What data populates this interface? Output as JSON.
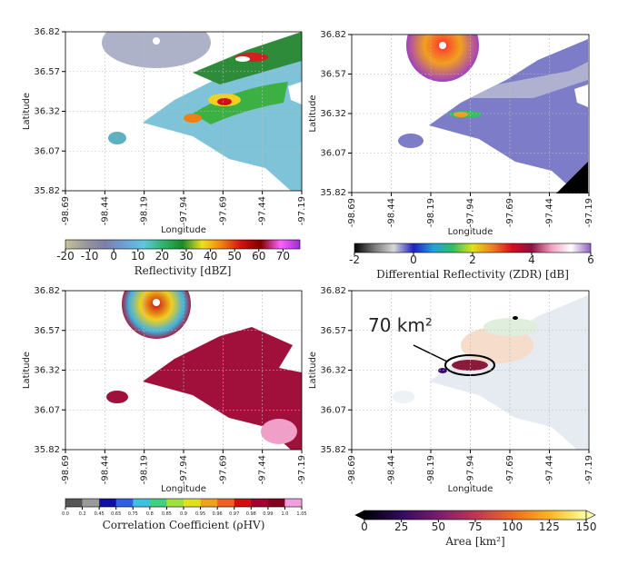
{
  "chart_data": [
    {
      "type": "heatmap",
      "xlabel": "Longitude",
      "ylabel": "Latitude",
      "xlim": [
        -98.69,
        -97.19
      ],
      "ylim": [
        35.82,
        36.82
      ],
      "xticks": [
        -98.69,
        -98.44,
        -98.19,
        -97.94,
        -97.69,
        -97.44,
        -97.19
      ],
      "yticks": [
        35.82,
        36.07,
        36.32,
        36.57,
        36.82
      ],
      "grid": true,
      "colorbar": {
        "label": "Reflectivity [dBZ]",
        "lim": [
          -20,
          77
        ],
        "ticks": [
          -20,
          -10,
          0,
          10,
          20,
          30,
          40,
          50,
          60,
          70
        ],
        "colors": [
          "#c8c39a",
          "#9a9a9a",
          "#7c7fa6",
          "#6f9fd6",
          "#5ec8e0",
          "#2fb36a",
          "#1a8a2a",
          "#f0e020",
          "#f08010",
          "#d01010",
          "#800000",
          "#ff60ff",
          "#9a30d0"
        ]
      }
    },
    {
      "type": "heatmap",
      "xlabel": "Longitude",
      "ylabel": "Latitude",
      "xlim": [
        -98.69,
        -97.19
      ],
      "ylim": [
        35.82,
        36.82
      ],
      "xticks": [
        -98.69,
        -98.44,
        -98.19,
        -97.94,
        -97.69,
        -97.44,
        -97.19
      ],
      "yticks": [
        35.82,
        36.07,
        36.32,
        36.57,
        36.82
      ],
      "grid": true,
      "colorbar": {
        "label": "Differential Reflectivity (ZDR) [dB]",
        "lim": [
          -2,
          6
        ],
        "ticks": [
          -2,
          0,
          2,
          4,
          6
        ],
        "colors": [
          "#000000",
          "#777777",
          "#d8d8d8",
          "#2020c0",
          "#20a0e0",
          "#30c060",
          "#e0e020",
          "#f08020",
          "#d01020",
          "#901040",
          "#f0a0c0",
          "#ffffff",
          "#9060c0"
        ]
      }
    },
    {
      "type": "heatmap",
      "xlabel": "Longitude",
      "ylabel": "Latitude",
      "xlim": [
        -98.69,
        -97.19
      ],
      "ylim": [
        35.82,
        36.82
      ],
      "xticks": [
        -98.69,
        -98.44,
        -98.19,
        -97.94,
        -97.69,
        -97.44,
        -97.19
      ],
      "yticks": [
        35.82,
        36.07,
        36.32,
        36.57,
        36.82
      ],
      "grid": true,
      "colorbar": {
        "label": "Correlation Coefficient (ρHV)",
        "ticks": [
          {
            "value": 0,
            "label": "0.0"
          },
          0.2,
          0.45,
          0.65,
          0.75,
          0.8,
          0.85,
          0.9,
          0.95,
          0.96,
          0.97,
          0.98,
          0.99,
          {
            "value": 1,
            "label": "1.0"
          },
          1.05
        ],
        "colors": [
          "#555555",
          "#9a9a9a",
          "#1010a0",
          "#3060e0",
          "#40c0e0",
          "#40d080",
          "#a0e040",
          "#e0e020",
          "#f0a020",
          "#f06020",
          "#d01010",
          "#a00030",
          "#800020",
          "#f0a0e0"
        ]
      }
    },
    {
      "type": "heatmap",
      "xlabel": "Longitude",
      "ylabel": "Latitude",
      "xlim": [
        -98.69,
        -97.19
      ],
      "ylim": [
        35.82,
        36.82
      ],
      "xticks": [
        -98.69,
        -98.44,
        -98.19,
        -97.94,
        -97.69,
        -97.44,
        -97.19
      ],
      "yticks": [
        35.82,
        36.07,
        36.32,
        36.57,
        36.82
      ],
      "grid": true,
      "annotation": "70 km²",
      "colorbar": {
        "label": "Area [km²]",
        "lim": [
          0,
          150
        ],
        "ticks": [
          0,
          25,
          50,
          75,
          100,
          125,
          150
        ],
        "extend": "both",
        "colors": [
          "#000004",
          "#320a5e",
          "#7a1d6d",
          "#bc3754",
          "#ed6925",
          "#fbb61a",
          "#fcffa4"
        ]
      }
    }
  ]
}
